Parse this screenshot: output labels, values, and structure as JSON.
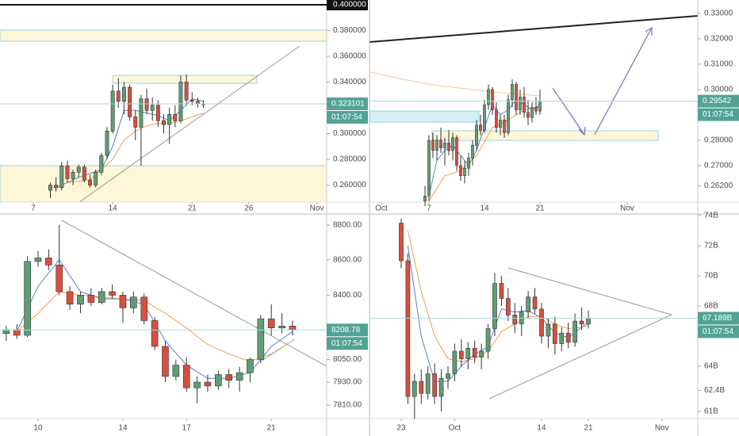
{
  "chart_data": [
    {
      "type": "candlestick",
      "up_color": "#5e9e74",
      "down_color": "#d6503f",
      "price_label_color": "#52a396",
      "countdown": "01:07:54",
      "xlim": [
        4.06,
        32.87
      ],
      "xticks": [
        7,
        14,
        21,
        26,
        {
          "value": 32,
          "label": "Nov"
        }
      ],
      "ylim": [
        0.2468,
        0.4037
      ],
      "yticks": [
        {
          "value": 0.26,
          "label": "0.260000"
        },
        {
          "value": 0.28,
          "label": "0.280000"
        },
        {
          "value": 0.3,
          "label": "0.300000"
        },
        {
          "value": 0.34,
          "label": "0.340000"
        },
        {
          "value": 0.36,
          "label": "0.360000"
        },
        {
          "value": 0.38,
          "label": "0.380000"
        }
      ],
      "last_price": 0.323101,
      "level": {
        "value": 0.4,
        "label": "0.400000"
      },
      "x": [
        8.5,
        9,
        9.5,
        10,
        10.5,
        11,
        11.5,
        12,
        12.5,
        13,
        13.5,
        14,
        14.5,
        15,
        15.5,
        16,
        16.5,
        17,
        17.5,
        18,
        18.5,
        19,
        19.5,
        20,
        20.5,
        21,
        21.5,
        22
      ],
      "open": [
        0.256,
        0.26,
        0.258,
        0.275,
        0.265,
        0.27,
        0.274,
        0.264,
        0.26,
        0.27,
        0.283,
        0.302,
        0.333,
        0.325,
        0.336,
        0.313,
        0.305,
        0.327,
        0.318,
        0.322,
        0.31,
        0.307,
        0.315,
        0.31,
        0.34,
        0.326,
        0.325,
        0.323
      ],
      "high": [
        0.262,
        0.266,
        0.278,
        0.279,
        0.272,
        0.276,
        0.276,
        0.268,
        0.272,
        0.285,
        0.305,
        0.338,
        0.343,
        0.34,
        0.338,
        0.318,
        0.33,
        0.335,
        0.328,
        0.326,
        0.315,
        0.32,
        0.322,
        0.345,
        0.346,
        0.332,
        0.328,
        0.326
      ],
      "low": [
        0.25,
        0.255,
        0.256,
        0.262,
        0.26,
        0.266,
        0.262,
        0.258,
        0.258,
        0.268,
        0.28,
        0.3,
        0.32,
        0.315,
        0.31,
        0.295,
        0.275,
        0.315,
        0.31,
        0.305,
        0.3,
        0.292,
        0.305,
        0.308,
        0.322,
        0.322,
        0.32,
        0.32
      ],
      "close": [
        0.26,
        0.258,
        0.275,
        0.265,
        0.27,
        0.274,
        0.264,
        0.26,
        0.27,
        0.283,
        0.302,
        0.333,
        0.325,
        0.336,
        0.313,
        0.305,
        0.327,
        0.318,
        0.322,
        0.31,
        0.307,
        0.315,
        0.31,
        0.34,
        0.326,
        0.325,
        0.323,
        0.323101
      ],
      "lines": [
        {
          "color": "#5b7fc9",
          "x": [
            9,
            11,
            13,
            14,
            15,
            16,
            17,
            18,
            19,
            20,
            21,
            22
          ],
          "values": [
            0.258,
            0.266,
            0.272,
            0.29,
            0.318,
            0.318,
            0.316,
            0.314,
            0.31,
            0.318,
            0.327,
            0.325
          ]
        },
        {
          "color": "#f0a050",
          "x": [
            10,
            12,
            14,
            15,
            16,
            17,
            18,
            19,
            20,
            21,
            22
          ],
          "values": [
            0.262,
            0.264,
            0.28,
            0.295,
            0.302,
            0.306,
            0.308,
            0.308,
            0.31,
            0.313,
            0.316
          ]
        }
      ]
    },
    {
      "type": "candlestick",
      "up_color": "#5e9e74",
      "down_color": "#d6503f",
      "price_label_color": "#52a396",
      "countdown": "01:07:54",
      "xlim": [
        -0.5,
        40.9
      ],
      "xticks": [
        {
          "value": 1,
          "label": "Oct"
        },
        7,
        14,
        21,
        {
          "value": 32,
          "label": "Nov"
        }
      ],
      "ylim": [
        0.2556,
        0.3353
      ],
      "yticks": [
        {
          "value": 0.262,
          "label": "0.26200"
        },
        {
          "value": 0.27,
          "label": "0.27000"
        },
        {
          "value": 0.28,
          "label": "0.28000"
        },
        {
          "value": 0.3,
          "label": "0.30000"
        },
        {
          "value": 0.31,
          "label": "0.31000"
        },
        {
          "value": 0.32,
          "label": "0.32000"
        },
        {
          "value": 0.33,
          "label": "0.33000"
        }
      ],
      "last_price": 0.29542,
      "x": [
        6.5,
        7,
        7.5,
        8,
        8.5,
        9,
        9.5,
        10,
        10.5,
        11,
        11.5,
        12,
        12.5,
        13,
        13.5,
        14,
        14.5,
        15,
        15.5,
        16,
        16.5,
        17,
        17.5,
        18,
        18.5,
        19,
        19.5,
        20,
        20.5,
        21
      ],
      "open": [
        0.256,
        0.258,
        0.28,
        0.276,
        0.28,
        0.277,
        0.279,
        0.276,
        0.281,
        0.27,
        0.266,
        0.269,
        0.273,
        0.278,
        0.286,
        0.284,
        0.294,
        0.3,
        0.292,
        0.285,
        0.288,
        0.283,
        0.296,
        0.302,
        0.292,
        0.297,
        0.291,
        0.289,
        0.293,
        0.2915
      ],
      "high": [
        0.262,
        0.282,
        0.283,
        0.282,
        0.285,
        0.281,
        0.284,
        0.283,
        0.282,
        0.274,
        0.272,
        0.275,
        0.28,
        0.288,
        0.29,
        0.296,
        0.302,
        0.301,
        0.295,
        0.29,
        0.29,
        0.298,
        0.304,
        0.303,
        0.3,
        0.301,
        0.296,
        0.295,
        0.297,
        0.3
      ],
      "low": [
        0.254,
        0.256,
        0.273,
        0.272,
        0.275,
        0.27,
        0.274,
        0.272,
        0.268,
        0.264,
        0.263,
        0.266,
        0.27,
        0.276,
        0.282,
        0.283,
        0.292,
        0.29,
        0.283,
        0.282,
        0.281,
        0.282,
        0.293,
        0.29,
        0.29,
        0.289,
        0.286,
        0.287,
        0.29,
        0.29
      ],
      "close": [
        0.258,
        0.28,
        0.276,
        0.28,
        0.277,
        0.279,
        0.276,
        0.281,
        0.27,
        0.266,
        0.269,
        0.273,
        0.278,
        0.286,
        0.284,
        0.294,
        0.3,
        0.292,
        0.285,
        0.288,
        0.283,
        0.296,
        0.302,
        0.292,
        0.297,
        0.291,
        0.289,
        0.293,
        0.2915,
        0.29542
      ],
      "lines": [
        {
          "color": "#5b7fc9",
          "x": [
            7,
            8,
            9,
            10,
            11,
            12,
            13,
            14,
            15,
            16,
            17,
            18,
            19,
            20,
            21
          ],
          "values": [
            0.258,
            0.272,
            0.276,
            0.278,
            0.274,
            0.27,
            0.276,
            0.285,
            0.294,
            0.29,
            0.292,
            0.296,
            0.294,
            0.292,
            0.294
          ]
        },
        {
          "color": "#f0a050",
          "x": [
            7,
            9,
            11,
            13,
            15,
            17,
            19,
            21
          ],
          "values": [
            0.256,
            0.266,
            0.268,
            0.274,
            0.285,
            0.288,
            0.292,
            0.293
          ]
        },
        {
          "color": "#f3c79a",
          "x": [
            -0.5,
            3,
            7,
            11,
            15,
            19,
            21
          ],
          "values": [
            0.307,
            0.3045,
            0.302,
            0.3005,
            0.299,
            0.298,
            0.2975
          ]
        }
      ]
    },
    {
      "type": "candlestick",
      "up_color": "#5e9e74",
      "down_color": "#d6503f",
      "price_label_color": "#52a396",
      "countdown": "01:07:54",
      "log_scale": true,
      "xlim": [
        8.206,
        23.61
      ],
      "xticks": [
        10,
        14,
        17,
        21
      ],
      "ylim": [
        7741,
        8841
      ],
      "yticks": [
        {
          "value": 7810,
          "label": "7810.00"
        },
        {
          "value": 7930,
          "label": "7930.00"
        },
        {
          "value": 8050,
          "label": "8050.00"
        },
        {
          "value": 8400,
          "label": "8400.00"
        },
        {
          "value": 8600,
          "label": "8600.00"
        },
        {
          "value": 8800,
          "label": "8800.00"
        }
      ],
      "last_price": 8208.78,
      "x": [
        8.5,
        9,
        9.5,
        10,
        10.5,
        11,
        11.5,
        12,
        12.5,
        13,
        13.5,
        14,
        14.5,
        15,
        15.5,
        16,
        16.5,
        17,
        17.5,
        18,
        18.5,
        19,
        19.5,
        20,
        20.5,
        21,
        21.5,
        22
      ],
      "open": [
        8190,
        8210,
        8180,
        8590,
        8610,
        8570,
        8420,
        8350,
        8400,
        8360,
        8420,
        8400,
        8330,
        8390,
        8260,
        8120,
        7960,
        8020,
        7900,
        7930,
        7910,
        7970,
        7940,
        7980,
        8050,
        8270,
        8220,
        8230
      ],
      "high": [
        8230,
        8240,
        8620,
        8650,
        8660,
        8800,
        8450,
        8420,
        8440,
        8440,
        8460,
        8420,
        8420,
        8410,
        8280,
        8150,
        8050,
        8060,
        7960,
        7970,
        7990,
        8000,
        8010,
        8060,
        8290,
        8350,
        8300,
        8260
      ],
      "low": [
        8150,
        8160,
        8170,
        8560,
        8540,
        8400,
        8320,
        8300,
        8340,
        8350,
        8380,
        8250,
        8300,
        8240,
        8100,
        7930,
        7940,
        7880,
        7820,
        7880,
        7890,
        7900,
        7880,
        7930,
        8030,
        8180,
        8190,
        8180
      ],
      "close": [
        8210,
        8180,
        8590,
        8610,
        8570,
        8420,
        8350,
        8400,
        8360,
        8420,
        8400,
        8330,
        8390,
        8260,
        8120,
        7960,
        8020,
        7900,
        7930,
        7910,
        7970,
        7940,
        7980,
        8050,
        8270,
        8220,
        8230,
        8208.78
      ],
      "lines": [
        {
          "color": "#5b7fc9",
          "x": [
            9,
            10,
            11,
            12,
            13,
            14,
            15,
            16,
            17,
            18,
            19,
            20,
            21,
            22
          ],
          "values": [
            8200,
            8450,
            8600,
            8420,
            8380,
            8380,
            8350,
            8150,
            8020,
            7950,
            7950,
            7980,
            8120,
            8200
          ]
        },
        {
          "color": "#f0a050",
          "x": [
            9,
            10,
            11,
            12,
            13,
            14,
            15,
            16,
            17,
            18,
            19,
            20,
            21,
            22
          ],
          "values": [
            8200,
            8300,
            8420,
            8400,
            8390,
            8380,
            8370,
            8300,
            8220,
            8130,
            8080,
            8040,
            8080,
            8150
          ]
        }
      ]
    },
    {
      "type": "candlestick",
      "up_color": "#5e9e74",
      "down_color": "#d6503f",
      "price_label_color": "#52a396",
      "countdown": "01:07:54",
      "xlim": [
        -11.74,
        37.37
      ],
      "xticks": [
        {
          "value": -7,
          "label": "23"
        },
        {
          "value": 1,
          "label": "Oct"
        },
        14,
        21,
        {
          "value": 32,
          "label": "Nov"
        }
      ],
      "ylim": [
        60.53,
        73.84
      ],
      "yticks": [
        {
          "value": 61,
          "label": "61B"
        },
        {
          "value": 62.4,
          "label": "62.4B"
        },
        {
          "value": 64,
          "label": "64B"
        },
        {
          "value": 68,
          "label": "68B"
        },
        {
          "value": 70,
          "label": "70B"
        },
        {
          "value": 72,
          "label": "72B"
        },
        {
          "value": 74,
          "label": "74B"
        }
      ],
      "last_price": {
        "value": 67.189,
        "label": "67.189B"
      },
      "x": [
        -7,
        -6,
        -5,
        -4,
        -3,
        -2,
        -1,
        0,
        1,
        2,
        3,
        4,
        5,
        6,
        7,
        8,
        9,
        10,
        11,
        12,
        13,
        14,
        15,
        16,
        17,
        18,
        19,
        20,
        21
      ],
      "open": [
        73.5,
        71,
        62,
        63,
        62.2,
        63.5,
        62,
        63.2,
        63.5,
        65,
        64.5,
        65.2,
        64.6,
        65,
        66.5,
        69.5,
        68.5,
        67.4,
        66.8,
        67.6,
        68.6,
        67.8,
        66,
        66.8,
        65.5,
        66.2,
        65.6,
        67,
        66.8
      ],
      "high": [
        73.8,
        71.5,
        63.5,
        63.8,
        64,
        64.2,
        63.8,
        64,
        65.5,
        65.8,
        65.6,
        65.7,
        65.5,
        66.8,
        70.2,
        70,
        69.2,
        68.2,
        68,
        69,
        69.2,
        68.2,
        67.2,
        67.3,
        66.6,
        66.9,
        67.5,
        67.9,
        67.7
      ],
      "low": [
        70.5,
        61.5,
        60.5,
        61.5,
        61.8,
        61.5,
        61,
        62.5,
        63,
        64,
        63.8,
        64.2,
        63.8,
        64.5,
        66,
        68,
        67,
        66.2,
        66,
        67.2,
        67.5,
        65.5,
        65.2,
        64.8,
        65,
        65.2,
        65.3,
        66.4,
        66.5
      ],
      "close": [
        71,
        62,
        63,
        62.2,
        63.5,
        62,
        63.2,
        63.5,
        65,
        64.5,
        65.2,
        64.6,
        65,
        66.5,
        69.5,
        68.5,
        67.4,
        66.8,
        67.6,
        68.6,
        67.8,
        66,
        66.8,
        65.5,
        66.2,
        65.6,
        67,
        66.8,
        67.189
      ],
      "lines": [
        {
          "color": "#5b7fc9",
          "x": [
            -6,
            -4,
            -2,
            0,
            2,
            4,
            6,
            8,
            10,
            12,
            14,
            16,
            18,
            20,
            21
          ],
          "values": [
            72,
            66,
            63,
            63,
            64,
            64.8,
            65.3,
            67.8,
            67.6,
            67.7,
            67.2,
            66.2,
            65.9,
            66.6,
            66.9
          ]
        },
        {
          "color": "#f0a050",
          "x": [
            -6,
            -4,
            -2,
            0,
            2,
            4,
            6,
            8,
            10,
            12,
            14,
            16,
            18,
            20,
            21
          ],
          "values": [
            73,
            69,
            66,
            64.5,
            64.3,
            64.5,
            65,
            66.3,
            66.8,
            67.3,
            67.3,
            66.8,
            66.5,
            66.6,
            66.7
          ]
        }
      ]
    }
  ]
}
